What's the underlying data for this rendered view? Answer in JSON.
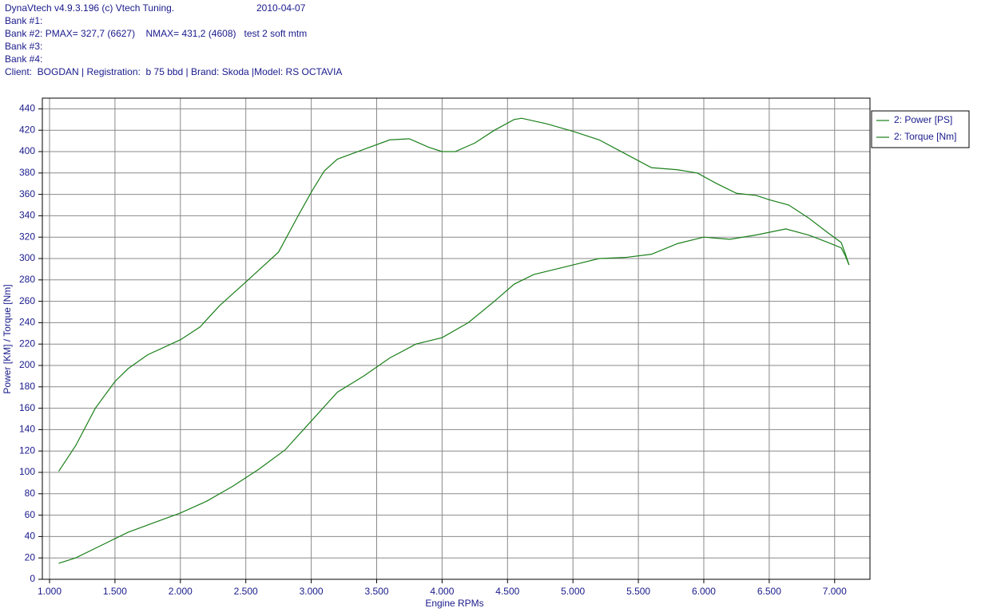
{
  "chart_data": {
    "type": "line",
    "title": "DynaVtech v4.9.3.196 (c) Vtech Tuning.",
    "date": "2010-04-07",
    "header_lines": [
      "Bank #1:",
      "Bank #2: PMAX= 327,7 (6627)    NMAX= 431,2 (4608)   test 2 soft mtm",
      "Bank #3:",
      "Bank #4:",
      "Client:  BOGDAN | Registration:  b 75 bbd | Brand: Skoda |Model: RS OCTAVIA"
    ],
    "xlabel": "Engine RPMs",
    "ylabel": "Power [KM] / Torque [Nm]",
    "xlim": [
      945,
      7270
    ],
    "ylim": [
      0,
      450
    ],
    "xticks": [
      {
        "value": 1000,
        "label": "1.000"
      },
      {
        "value": 1500,
        "label": "1.500"
      },
      {
        "value": 2000,
        "label": "2.000"
      },
      {
        "value": 2500,
        "label": "2.500"
      },
      {
        "value": 3000,
        "label": "3.000"
      },
      {
        "value": 3500,
        "label": "3.500"
      },
      {
        "value": 4000,
        "label": "4.000"
      },
      {
        "value": 4500,
        "label": "4.500"
      },
      {
        "value": 5000,
        "label": "5.000"
      },
      {
        "value": 5500,
        "label": "5.500"
      },
      {
        "value": 6000,
        "label": "6.000"
      },
      {
        "value": 6500,
        "label": "6.500"
      },
      {
        "value": 7000,
        "label": "7.000"
      }
    ],
    "yticks": [
      0,
      20,
      40,
      60,
      80,
      100,
      120,
      140,
      160,
      180,
      200,
      220,
      240,
      260,
      280,
      300,
      320,
      340,
      360,
      380,
      400,
      420,
      440
    ],
    "grid": true,
    "legend": "top-right",
    "series": [
      {
        "name": "2: Power [PS]",
        "color": "#1a7f1a",
        "x": [
          1070,
          1200,
          1400,
          1600,
          1800,
          2000,
          2200,
          2400,
          2600,
          2800,
          3000,
          3200,
          3400,
          3600,
          3800,
          4000,
          4200,
          4400,
          4550,
          4700,
          5000,
          5200,
          5400,
          5600,
          5800,
          6000,
          6200,
          6400,
          6627,
          6800,
          6950,
          7050,
          7080,
          7110
        ],
        "values": [
          15,
          20,
          32,
          44,
          53,
          62,
          73,
          87,
          103,
          121,
          148,
          175,
          190,
          207,
          220,
          226,
          240,
          260,
          276,
          285,
          294,
          300,
          301,
          304,
          314,
          320,
          318,
          322,
          327.7,
          322,
          315,
          310,
          303,
          294
        ]
      },
      {
        "name": "2: Torque [Nm]",
        "color": "#1a7f1a",
        "x": [
          1070,
          1200,
          1350,
          1500,
          1600,
          1750,
          2000,
          2150,
          2300,
          2500,
          2750,
          2900,
          3000,
          3100,
          3200,
          3400,
          3600,
          3750,
          3900,
          4000,
          4100,
          4250,
          4400,
          4550,
          4608,
          4800,
          5000,
          5200,
          5400,
          5600,
          5800,
          5950,
          6100,
          6250,
          6400,
          6500,
          6650,
          6800,
          6950,
          7050,
          7080,
          7110
        ],
        "values": [
          101,
          125,
          160,
          185,
          197,
          210,
          224,
          236,
          256,
          278,
          306,
          340,
          362,
          382,
          393,
          402,
          411,
          412,
          404,
          400,
          400,
          408,
          420,
          430,
          431.2,
          426,
          419,
          411,
          398,
          385,
          383,
          380,
          370,
          361,
          359,
          355,
          350,
          338,
          324,
          315,
          305,
          294
        ]
      }
    ]
  }
}
